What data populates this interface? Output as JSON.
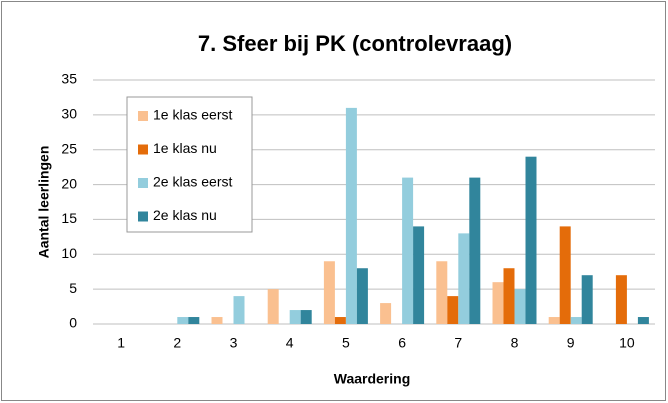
{
  "chart_data": {
    "type": "bar",
    "title": "7. Sfeer bij PK (controlevraag)",
    "xlabel": "Waardering",
    "ylabel": "Aantal leerlingen",
    "categories": [
      "1",
      "2",
      "3",
      "4",
      "5",
      "6",
      "7",
      "8",
      "9",
      "10"
    ],
    "series": [
      {
        "name": "1e klas eerst",
        "color": "#fac090",
        "values": [
          0,
          0,
          1,
          5,
          9,
          3,
          9,
          6,
          1,
          0
        ]
      },
      {
        "name": "1e klas nu",
        "color": "#e46c0a",
        "values": [
          0,
          0,
          0,
          0,
          1,
          0,
          4,
          8,
          14,
          7
        ]
      },
      {
        "name": "2e klas eerst",
        "color": "#93cddd",
        "values": [
          0,
          1,
          4,
          2,
          31,
          21,
          13,
          5,
          1,
          0
        ]
      },
      {
        "name": "2e klas nu",
        "color": "#31859c",
        "values": [
          0,
          1,
          0,
          2,
          8,
          14,
          21,
          24,
          7,
          1
        ]
      }
    ],
    "ylim": [
      0,
      35
    ],
    "yticks": [
      0,
      5,
      10,
      15,
      20,
      25,
      30,
      35
    ],
    "grid": true,
    "legend": "upper left"
  }
}
